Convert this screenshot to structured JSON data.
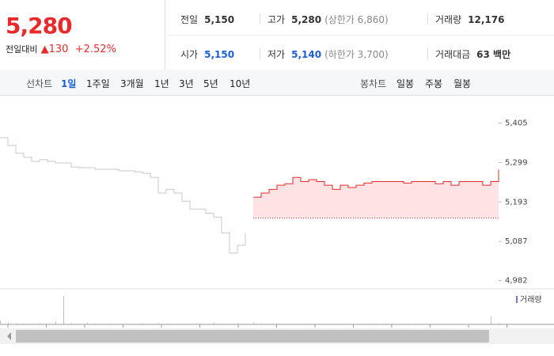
{
  "quote": {
    "price": "5,280",
    "change_label": "전일대비",
    "change": "▲130",
    "change_pct": "+2.52%"
  },
  "summary": [
    [
      {
        "label": "전일",
        "value": "5,150"
      },
      {
        "label": "고가",
        "value": "5,280",
        "note": "(상한가 6,860)"
      },
      {
        "label": "거래량",
        "value": "12,176"
      }
    ],
    [
      {
        "label": "시가",
        "value": "5,150"
      },
      {
        "label": "저가",
        "value": "5,140",
        "note": "(하한가 3,700)"
      },
      {
        "label": "거래대금",
        "value": "63 백만"
      }
    ]
  ],
  "tabs": {
    "line_label": "선차트",
    "line": [
      "1일",
      "1주일",
      "3개월",
      "1년",
      "3년",
      "5년",
      "10년"
    ],
    "candle_label": "봉차트",
    "candle": [
      "일봉",
      "주봉",
      "월봉"
    ]
  },
  "chart_data": [
    {
      "type": "line",
      "ylim": [
        4960,
        5470
      ],
      "yticks": [
        {
          "value": 5405,
          "label": "5,405"
        },
        {
          "value": 5299,
          "label": "5,299"
        },
        {
          "value": 5193,
          "label": "5,193"
        },
        {
          "value": 5087,
          "label": "5,087"
        },
        {
          "value": 4982,
          "label": "4,982"
        }
      ],
      "baseline": 5150,
      "series": [
        {
          "color": "#c8c8c8",
          "values": [
            5366,
            5345,
            5324,
            5313,
            5302,
            5307,
            5302,
            5298,
            5298,
            5287,
            5285,
            5285,
            5281,
            5281,
            5281,
            5277,
            5277,
            5274,
            5270,
            5259,
            5217,
            5227,
            5217,
            5195,
            5174,
            5174,
            5163,
            5152,
            5110,
            5056,
            5077,
            5110,
            null,
            null,
            null,
            null,
            null,
            null,
            null,
            null,
            null,
            null,
            null,
            null,
            null,
            null,
            null,
            null,
            null,
            null,
            null,
            null,
            null,
            null,
            null,
            null,
            null,
            null,
            null,
            null,
            null,
            null,
            null,
            null
          ]
        },
        {
          "color": "#e82a2a",
          "fill": "#fde3e3",
          "values": [
            null,
            null,
            null,
            null,
            null,
            null,
            null,
            null,
            null,
            null,
            null,
            null,
            null,
            null,
            null,
            null,
            null,
            null,
            null,
            null,
            null,
            null,
            null,
            null,
            null,
            null,
            null,
            null,
            null,
            null,
            null,
            null,
            5206,
            5217,
            5227,
            5238,
            5242,
            5259,
            5248,
            5253,
            5248,
            5238,
            5227,
            5238,
            5232,
            5238,
            5244,
            5248,
            5248,
            5248,
            5248,
            5244,
            5248,
            5248,
            5248,
            5242,
            5248,
            5238,
            5248,
            5248,
            5248,
            5238,
            5248,
            5280
          ]
        }
      ]
    },
    {
      "type": "bar",
      "legend": "거래량",
      "color": "#bdbdbd",
      "legend_color": "#8c6fc9",
      "ylim": [
        0,
        1000
      ],
      "values": [
        120,
        60,
        40,
        30,
        20,
        40,
        20,
        80,
        900,
        40,
        20,
        60,
        30,
        20,
        30,
        10,
        20,
        20,
        30,
        10,
        40,
        20,
        10,
        20,
        20,
        30,
        10,
        60,
        30,
        20,
        40,
        30,
        60,
        40,
        20,
        30,
        20,
        10,
        20,
        30,
        20,
        10,
        20,
        10,
        20,
        10,
        20,
        30,
        10,
        20,
        10,
        20,
        10,
        10,
        20,
        10,
        20,
        10,
        20,
        10,
        20,
        10,
        240,
        40
      ]
    }
  ]
}
